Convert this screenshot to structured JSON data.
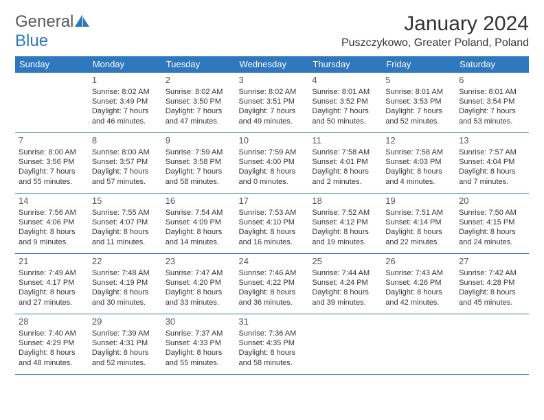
{
  "brand": {
    "part1": "General",
    "part2": "Blue"
  },
  "title": "January 2024",
  "location": "Puszczykowo, Greater Poland, Poland",
  "colors": {
    "header_bg": "#2f78bd",
    "header_fg": "#ffffff",
    "text": "#333333",
    "border": "#2f78bd",
    "brand_gray": "#5a5a5a",
    "brand_blue": "#2f78bd",
    "background": "#ffffff"
  },
  "typography": {
    "title_fontsize": 30,
    "location_fontsize": 16,
    "dayheader_fontsize": 13,
    "daynum_fontsize": 13,
    "cell_fontsize": 11
  },
  "day_headers": [
    "Sunday",
    "Monday",
    "Tuesday",
    "Wednesday",
    "Thursday",
    "Friday",
    "Saturday"
  ],
  "weeks": [
    [
      null,
      {
        "n": "1",
        "sr": "8:02 AM",
        "ss": "3:49 PM",
        "dl": "7 hours and 46 minutes."
      },
      {
        "n": "2",
        "sr": "8:02 AM",
        "ss": "3:50 PM",
        "dl": "7 hours and 47 minutes."
      },
      {
        "n": "3",
        "sr": "8:02 AM",
        "ss": "3:51 PM",
        "dl": "7 hours and 49 minutes."
      },
      {
        "n": "4",
        "sr": "8:01 AM",
        "ss": "3:52 PM",
        "dl": "7 hours and 50 minutes."
      },
      {
        "n": "5",
        "sr": "8:01 AM",
        "ss": "3:53 PM",
        "dl": "7 hours and 52 minutes."
      },
      {
        "n": "6",
        "sr": "8:01 AM",
        "ss": "3:54 PM",
        "dl": "7 hours and 53 minutes."
      }
    ],
    [
      {
        "n": "7",
        "sr": "8:00 AM",
        "ss": "3:56 PM",
        "dl": "7 hours and 55 minutes."
      },
      {
        "n": "8",
        "sr": "8:00 AM",
        "ss": "3:57 PM",
        "dl": "7 hours and 57 minutes."
      },
      {
        "n": "9",
        "sr": "7:59 AM",
        "ss": "3:58 PM",
        "dl": "7 hours and 58 minutes."
      },
      {
        "n": "10",
        "sr": "7:59 AM",
        "ss": "4:00 PM",
        "dl": "8 hours and 0 minutes."
      },
      {
        "n": "11",
        "sr": "7:58 AM",
        "ss": "4:01 PM",
        "dl": "8 hours and 2 minutes."
      },
      {
        "n": "12",
        "sr": "7:58 AM",
        "ss": "4:03 PM",
        "dl": "8 hours and 4 minutes."
      },
      {
        "n": "13",
        "sr": "7:57 AM",
        "ss": "4:04 PM",
        "dl": "8 hours and 7 minutes."
      }
    ],
    [
      {
        "n": "14",
        "sr": "7:56 AM",
        "ss": "4:06 PM",
        "dl": "8 hours and 9 minutes."
      },
      {
        "n": "15",
        "sr": "7:55 AM",
        "ss": "4:07 PM",
        "dl": "8 hours and 11 minutes."
      },
      {
        "n": "16",
        "sr": "7:54 AM",
        "ss": "4:09 PM",
        "dl": "8 hours and 14 minutes."
      },
      {
        "n": "17",
        "sr": "7:53 AM",
        "ss": "4:10 PM",
        "dl": "8 hours and 16 minutes."
      },
      {
        "n": "18",
        "sr": "7:52 AM",
        "ss": "4:12 PM",
        "dl": "8 hours and 19 minutes."
      },
      {
        "n": "19",
        "sr": "7:51 AM",
        "ss": "4:14 PM",
        "dl": "8 hours and 22 minutes."
      },
      {
        "n": "20",
        "sr": "7:50 AM",
        "ss": "4:15 PM",
        "dl": "8 hours and 24 minutes."
      }
    ],
    [
      {
        "n": "21",
        "sr": "7:49 AM",
        "ss": "4:17 PM",
        "dl": "8 hours and 27 minutes."
      },
      {
        "n": "22",
        "sr": "7:48 AM",
        "ss": "4:19 PM",
        "dl": "8 hours and 30 minutes."
      },
      {
        "n": "23",
        "sr": "7:47 AM",
        "ss": "4:20 PM",
        "dl": "8 hours and 33 minutes."
      },
      {
        "n": "24",
        "sr": "7:46 AM",
        "ss": "4:22 PM",
        "dl": "8 hours and 36 minutes."
      },
      {
        "n": "25",
        "sr": "7:44 AM",
        "ss": "4:24 PM",
        "dl": "8 hours and 39 minutes."
      },
      {
        "n": "26",
        "sr": "7:43 AM",
        "ss": "4:26 PM",
        "dl": "8 hours and 42 minutes."
      },
      {
        "n": "27",
        "sr": "7:42 AM",
        "ss": "4:28 PM",
        "dl": "8 hours and 45 minutes."
      }
    ],
    [
      {
        "n": "28",
        "sr": "7:40 AM",
        "ss": "4:29 PM",
        "dl": "8 hours and 48 minutes."
      },
      {
        "n": "29",
        "sr": "7:39 AM",
        "ss": "4:31 PM",
        "dl": "8 hours and 52 minutes."
      },
      {
        "n": "30",
        "sr": "7:37 AM",
        "ss": "4:33 PM",
        "dl": "8 hours and 55 minutes."
      },
      {
        "n": "31",
        "sr": "7:36 AM",
        "ss": "4:35 PM",
        "dl": "8 hours and 58 minutes."
      },
      null,
      null,
      null
    ]
  ],
  "labels": {
    "sunrise": "Sunrise: ",
    "sunset": "Sunset: ",
    "daylight": "Daylight: "
  }
}
